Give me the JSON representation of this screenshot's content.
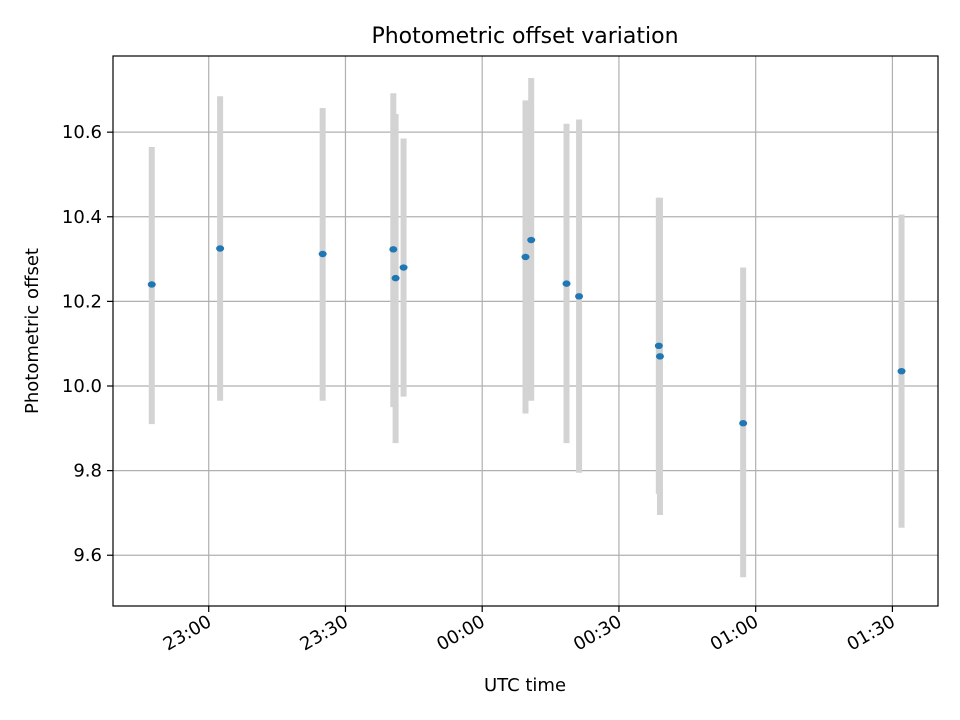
{
  "chart_data": {
    "type": "scatter",
    "title": "Photometric offset variation",
    "xlabel": "UTC time",
    "ylabel": "Photometric offset",
    "x_is_time": true,
    "xlim": [
      "22:39",
      "01:40"
    ],
    "ylim": [
      9.48,
      10.78
    ],
    "x_ticks": [
      "23:00",
      "23:30",
      "00:00",
      "00:30",
      "01:00",
      "01:30"
    ],
    "y_ticks": [
      9.6,
      9.8,
      10.0,
      10.2,
      10.4,
      10.6
    ],
    "grid": true,
    "colors": {
      "points": "#1f77b4",
      "errorbars": "#d3d3d3",
      "grid": "#b0b0b0",
      "axes": "#000000"
    },
    "points": [
      {
        "x": "22:47:30",
        "y": 10.24,
        "err_low": 9.91,
        "err_high": 10.565
      },
      {
        "x": "23:02:30",
        "y": 10.325,
        "err_low": 9.965,
        "err_high": 10.685
      },
      {
        "x": "23:25:00",
        "y": 10.312,
        "err_low": 9.965,
        "err_high": 10.657
      },
      {
        "x": "23:40:30",
        "y": 10.323,
        "err_low": 9.95,
        "err_high": 10.692
      },
      {
        "x": "23:41:00",
        "y": 10.255,
        "err_low": 9.865,
        "err_high": 10.643
      },
      {
        "x": "23:42:45",
        "y": 10.28,
        "err_low": 9.975,
        "err_high": 10.585
      },
      {
        "x": "00:09:30",
        "y": 10.305,
        "err_low": 9.935,
        "err_high": 10.675
      },
      {
        "x": "00:10:45",
        "y": 10.345,
        "err_low": 9.965,
        "err_high": 10.728
      },
      {
        "x": "00:18:30",
        "y": 10.242,
        "err_low": 9.865,
        "err_high": 10.62
      },
      {
        "x": "00:21:15",
        "y": 10.212,
        "err_low": 9.795,
        "err_high": 10.63
      },
      {
        "x": "00:38:45",
        "y": 10.095,
        "err_low": 9.745,
        "err_high": 10.445
      },
      {
        "x": "00:39:00",
        "y": 10.07,
        "err_low": 9.695,
        "err_high": 10.445
      },
      {
        "x": "00:57:15",
        "y": 9.912,
        "err_low": 9.548,
        "err_high": 10.28
      },
      {
        "x": "01:32:00",
        "y": 10.035,
        "err_low": 9.665,
        "err_high": 10.405
      }
    ]
  }
}
